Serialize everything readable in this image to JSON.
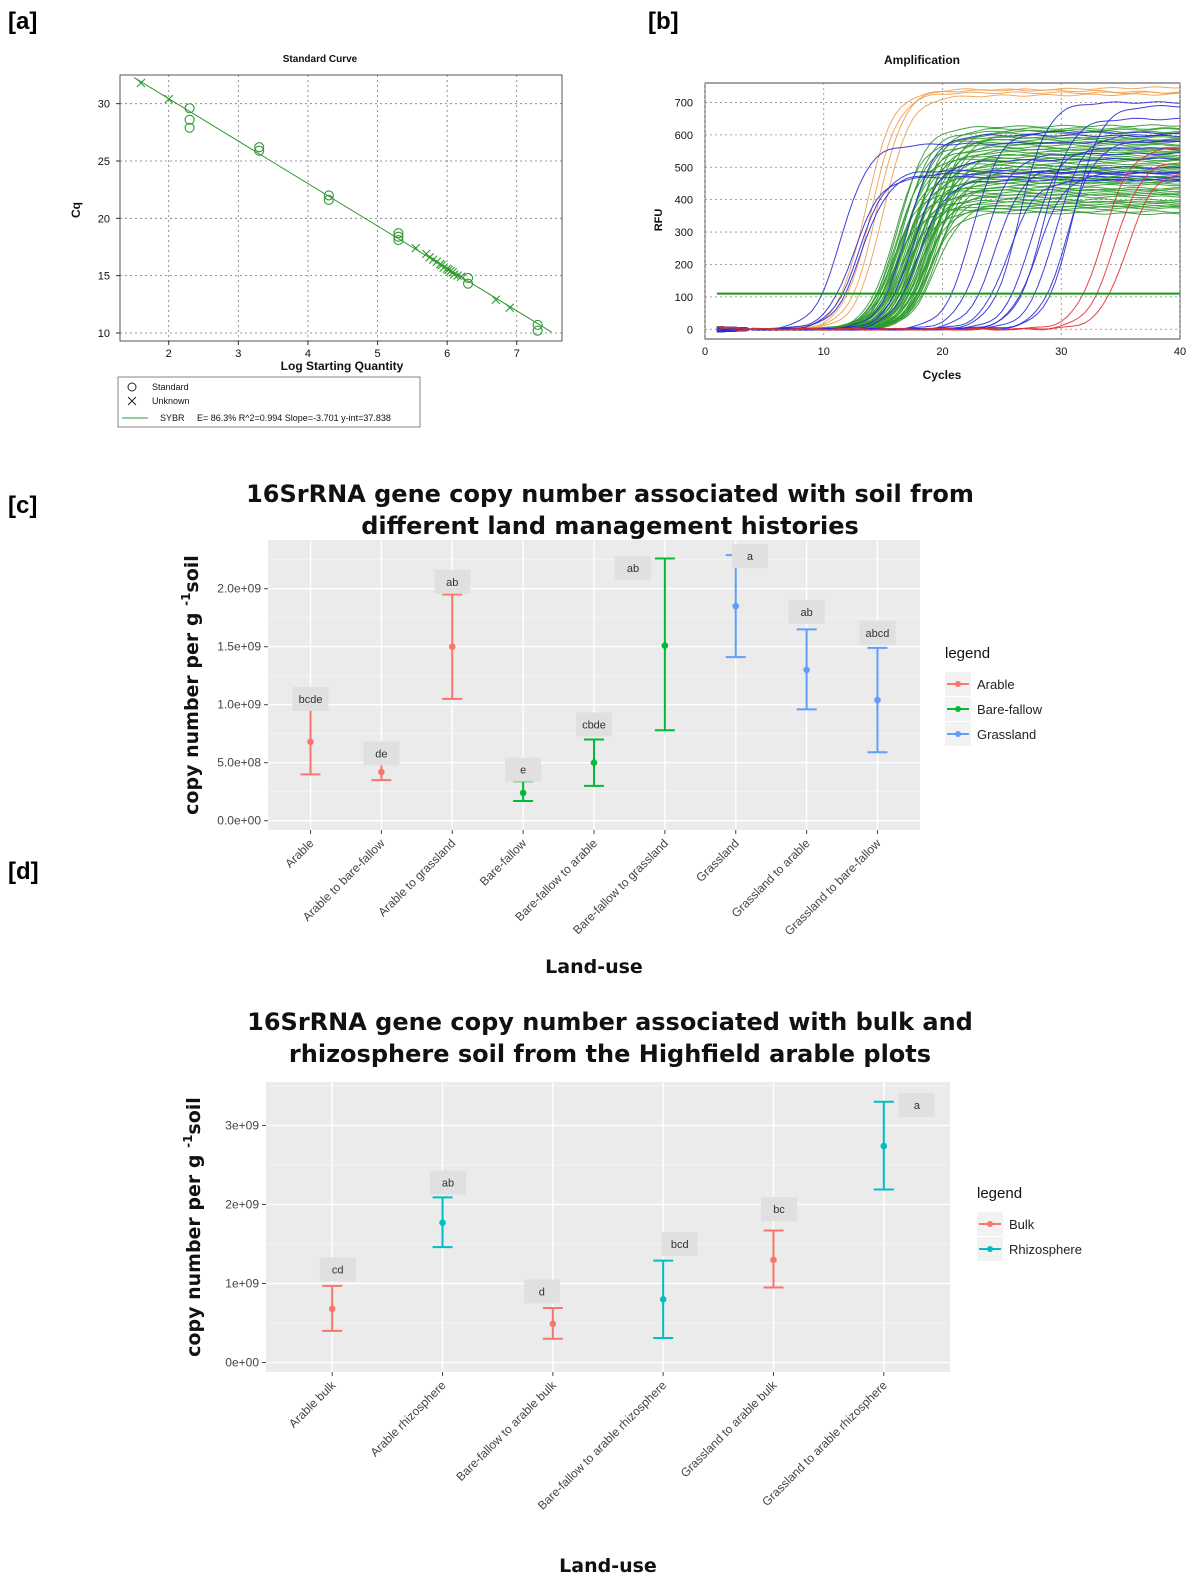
{
  "panels": {
    "a": {
      "label": "[a]"
    },
    "b": {
      "label": "[b]"
    },
    "c": {
      "label": "[c]"
    },
    "d": {
      "label": "[d]"
    }
  },
  "chart_data": [
    {
      "id": "a",
      "type": "scatter",
      "title": "Standard Curve",
      "xlabel": "Log Starting Quantity",
      "ylabel": "Cq",
      "xlim": [
        1.3,
        7.65
      ],
      "ylim": [
        9.3,
        32.5
      ],
      "xticks": [
        2,
        3,
        4,
        5,
        6,
        7
      ],
      "yticks": [
        10,
        15,
        20,
        25,
        30
      ],
      "grid": true,
      "series": [
        {
          "name": "Standard",
          "marker": "circle",
          "color": "#2e9a2e",
          "x": [
            2.3,
            2.3,
            2.3,
            3.3,
            3.3,
            4.3,
            4.3,
            5.3,
            5.3,
            5.3,
            6.3,
            6.3,
            7.3,
            7.3
          ],
          "y": [
            29.6,
            28.6,
            27.9,
            26.2,
            25.9,
            22.0,
            21.6,
            18.7,
            18.4,
            18.1,
            14.8,
            14.3,
            10.7,
            10.2
          ]
        },
        {
          "name": "Unknown",
          "marker": "x",
          "color": "#2e9a2e",
          "x": [
            1.6,
            2.0,
            5.55,
            5.7,
            5.75,
            5.8,
            5.85,
            5.9,
            5.92,
            5.95,
            6.0,
            6.02,
            6.05,
            6.08,
            6.1,
            6.15,
            6.2,
            6.7,
            6.9
          ],
          "y": [
            31.8,
            30.4,
            17.4,
            16.9,
            16.6,
            16.4,
            16.2,
            16.0,
            15.9,
            15.7,
            15.6,
            15.5,
            15.4,
            15.3,
            15.1,
            15.0,
            14.9,
            12.9,
            12.2
          ]
        }
      ],
      "fit_line": {
        "series": "SYBR",
        "slope": -3.701,
        "intercept": 37.838,
        "x_range": [
          1.5,
          7.5
        ]
      },
      "legend": {
        "position": "bottom-left",
        "items": [
          "Standard",
          "Unknown"
        ],
        "fit_label": "SYBR",
        "fit_stats": "E= 86.3% R^2=0.994 Slope=-3.701 y-int=37.838"
      }
    },
    {
      "id": "b",
      "type": "line",
      "title": "Amplification",
      "xlabel": "Cycles",
      "ylabel": "RFU",
      "xlim": [
        0,
        40
      ],
      "ylim": [
        -30,
        760
      ],
      "xticks": [
        0,
        10,
        20,
        30,
        40
      ],
      "yticks": [
        0,
        100,
        200,
        300,
        400,
        500,
        600,
        700
      ],
      "grid": true,
      "threshold": 110,
      "threshold_color": "#139a13",
      "curve_groups": [
        {
          "color": "#f0a050",
          "midpoint": [
            13.5,
            14.0,
            14.5,
            15.0
          ],
          "plateau": [
            735,
            730,
            742,
            720
          ]
        },
        {
          "color": "#2f9a2f",
          "midpoint_range": [
            15.8,
            19.8
          ],
          "plateau_range": [
            360,
            630
          ],
          "count": 52
        },
        {
          "color": "#2a2ad6",
          "midpoint": [
            11.5,
            12.5,
            13.0,
            13.2,
            17.0,
            17.5,
            18.0,
            22.5,
            23.5,
            24.5,
            25.5,
            26.5,
            27.5,
            28.0,
            28.5,
            29.5,
            30.5,
            31.0
          ],
          "plateau": [
            570,
            470,
            490,
            480,
            600,
            520,
            460,
            610,
            540,
            500,
            460,
            700,
            560,
            480,
            650,
            600,
            580,
            690
          ]
        },
        {
          "color": "#e03030",
          "midpoint": [
            33.5,
            34.5,
            35.5
          ],
          "plateau": [
            560,
            520,
            490
          ]
        }
      ]
    },
    {
      "id": "c",
      "type": "errorbar",
      "title_lines": [
        "16SrRNA gene copy number associated with soil from",
        "different land management histories"
      ],
      "xlabel": "Land-use",
      "ylabel": "copy number per g",
      "ylabel_sup": "-1",
      "ylabel_suffix": "soil",
      "ylim": [
        -80000000,
        2420000000
      ],
      "yticks": [
        0,
        500000000,
        1000000000,
        1500000000,
        2000000000
      ],
      "ytick_labels": [
        "0.0e+00",
        "5.0e+08",
        "1.0e+09",
        "1.5e+09",
        "2.0e+09"
      ],
      "categories": [
        "Arable",
        "Arable to bare-fallow",
        "Arable to grassland",
        "Bare-fallow",
        "Bare-fallow to arable",
        "Bare-fallow to grassland",
        "Grassland",
        "Grassland to arable",
        "Grassland to bare-fallow"
      ],
      "groups": [
        "Arable",
        "Arable",
        "Arable",
        "Bare-fallow",
        "Bare-fallow",
        "Bare-fallow",
        "Grassland",
        "Grassland",
        "Grassland"
      ],
      "mean": [
        680000000,
        420000000,
        1500000000,
        240000000,
        500000000,
        1510000000,
        1850000000,
        1300000000,
        1040000000
      ],
      "lower": [
        400000000,
        350000000,
        1050000000,
        170000000,
        300000000,
        780000000,
        1410000000,
        960000000,
        590000000
      ],
      "upper": [
        960000000,
        490000000,
        1950000000,
        340000000,
        700000000,
        2260000000,
        2290000000,
        1650000000,
        1490000000
      ],
      "letters": [
        "bcde",
        "de",
        "ab",
        "e",
        "cbde",
        "ab",
        "a",
        "ab",
        "abcd"
      ],
      "letter_y": [
        1050000000,
        580000000,
        2060000000,
        440000000,
        830000000,
        2180000000,
        2280000000,
        1800000000,
        1620000000
      ],
      "letter_offset": [
        0,
        0,
        0,
        0,
        0,
        -0.45,
        0.2,
        0,
        0
      ],
      "legend": {
        "title": "legend",
        "position": "right",
        "items": [
          {
            "label": "Arable",
            "color": "#F8766D"
          },
          {
            "label": "Bare-fallow",
            "color": "#00BA38"
          },
          {
            "label": "Grassland",
            "color": "#619CFF"
          }
        ]
      }
    },
    {
      "id": "d",
      "type": "errorbar",
      "title_lines": [
        "16SrRNA gene copy number associated with bulk and",
        "rhizosphere soil from the Highfield arable plots"
      ],
      "xlabel": "Land-use",
      "ylabel": "copy number per g",
      "ylabel_sup": "-1",
      "ylabel_suffix": "soil",
      "ylim": [
        -120000000,
        3550000000
      ],
      "yticks": [
        0,
        1000000000,
        2000000000,
        3000000000
      ],
      "ytick_labels": [
        "0e+00",
        "1e+09",
        "2e+09",
        "3e+09"
      ],
      "categories": [
        "Arable bulk",
        "Arable rhizosphere",
        "Bare-fallow to arable bulk",
        "Bare-fallow to arable rhizosphere",
        "Grassland to arable bulk",
        "Grassland to arable rhizosphere"
      ],
      "groups": [
        "Bulk",
        "Rhizosphere",
        "Bulk",
        "Rhizosphere",
        "Bulk",
        "Rhizosphere"
      ],
      "mean": [
        680000000,
        1770000000,
        490000000,
        800000000,
        1300000000,
        2740000000
      ],
      "lower": [
        400000000,
        1460000000,
        300000000,
        310000000,
        950000000,
        2190000000
      ],
      "upper": [
        970000000,
        2090000000,
        690000000,
        1290000000,
        1670000000,
        3300000000
      ],
      "letters": [
        "cd",
        "ab",
        "d",
        "bcd",
        "bc",
        "a"
      ],
      "letter_y": [
        1180000000,
        2280000000,
        900000000,
        1500000000,
        1940000000,
        3260000000
      ],
      "letter_offset": [
        0.05,
        0.05,
        -0.1,
        0.15,
        0.05,
        0.3
      ],
      "legend": {
        "title": "legend",
        "position": "right",
        "items": [
          {
            "label": "Bulk",
            "color": "#F8766D"
          },
          {
            "label": "Rhizosphere",
            "color": "#00BFC4"
          }
        ]
      }
    }
  ]
}
